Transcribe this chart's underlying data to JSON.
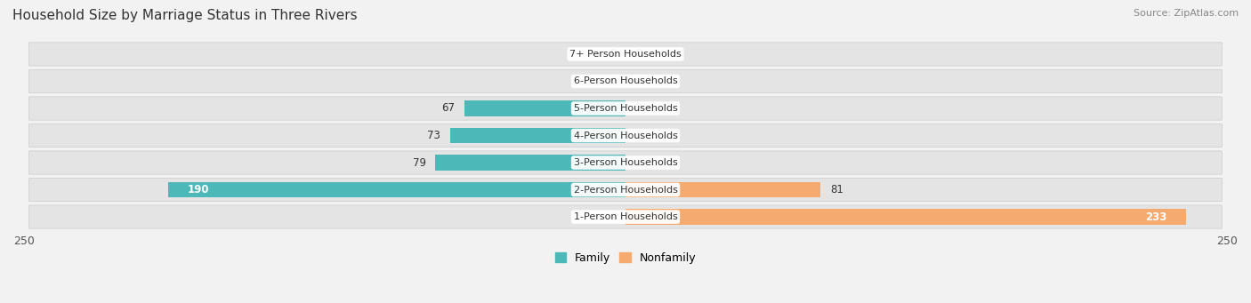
{
  "title": "Household Size by Marriage Status in Three Rivers",
  "source": "Source: ZipAtlas.com",
  "categories": [
    "7+ Person Households",
    "6-Person Households",
    "5-Person Households",
    "4-Person Households",
    "3-Person Households",
    "2-Person Households",
    "1-Person Households"
  ],
  "family_values": [
    0,
    0,
    67,
    73,
    79,
    190,
    0
  ],
  "nonfamily_values": [
    0,
    0,
    0,
    0,
    0,
    81,
    233
  ],
  "family_color": "#4db8b8",
  "nonfamily_color": "#f5aa6f",
  "xlim": 250,
  "background_color": "#f2f2f2",
  "bar_bg_color": "#e4e4e4",
  "title_fontsize": 11,
  "source_fontsize": 8,
  "label_fontsize": 8.5,
  "cat_fontsize": 8
}
